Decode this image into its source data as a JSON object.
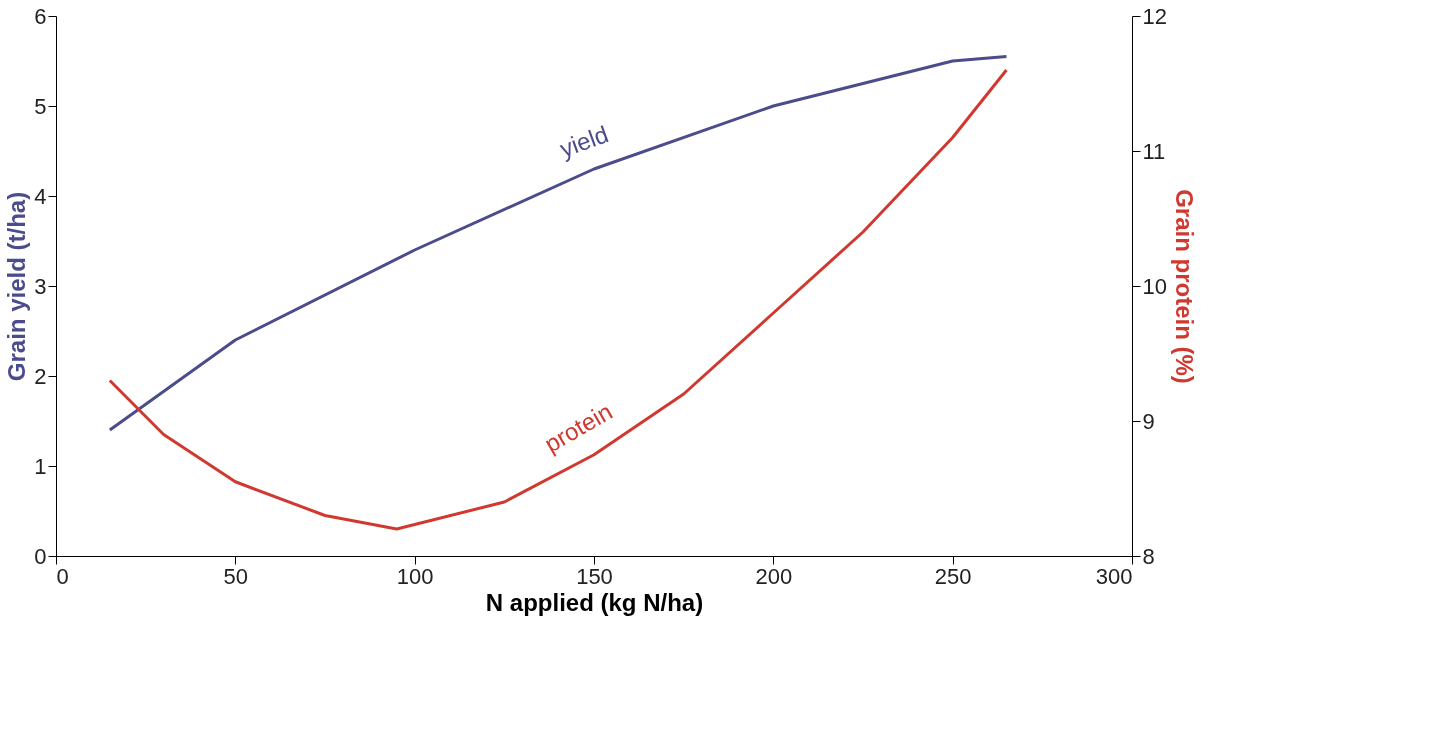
{
  "chart_data": {
    "type": "line",
    "xlabel": "N applied (kg N/ha)",
    "ylabel": "Grain yield (t/ha)",
    "y2label": "Grain protein (%)",
    "xlim": [
      0,
      300
    ],
    "xticks": [
      0,
      50,
      100,
      150,
      200,
      250,
      300
    ],
    "ylim": [
      0,
      6
    ],
    "yticks": [
      0,
      1,
      2,
      3,
      4,
      5,
      6
    ],
    "y2lim": [
      8,
      12
    ],
    "y2ticks": [
      8,
      9,
      10,
      11,
      12
    ],
    "grid": false,
    "marker": "none",
    "line_style": "solid",
    "series": [
      {
        "name": "yield",
        "color": "#4b4c8c",
        "x": [
          15,
          50,
          100,
          150,
          200,
          250,
          265
        ],
        "values": [
          1.4,
          2.4,
          3.4,
          4.3,
          5.0,
          5.5,
          5.55
        ]
      },
      {
        "name": "protein",
        "color": "#d0392f",
        "axis": "y2",
        "x": [
          15,
          30,
          50,
          75,
          95,
          125,
          150,
          175,
          200,
          225,
          250,
          265
        ],
        "values": [
          9.3,
          8.9,
          8.55,
          8.3,
          8.2,
          8.4,
          8.75,
          9.2,
          9.8,
          10.4,
          11.1,
          11.6
        ]
      }
    ]
  }
}
